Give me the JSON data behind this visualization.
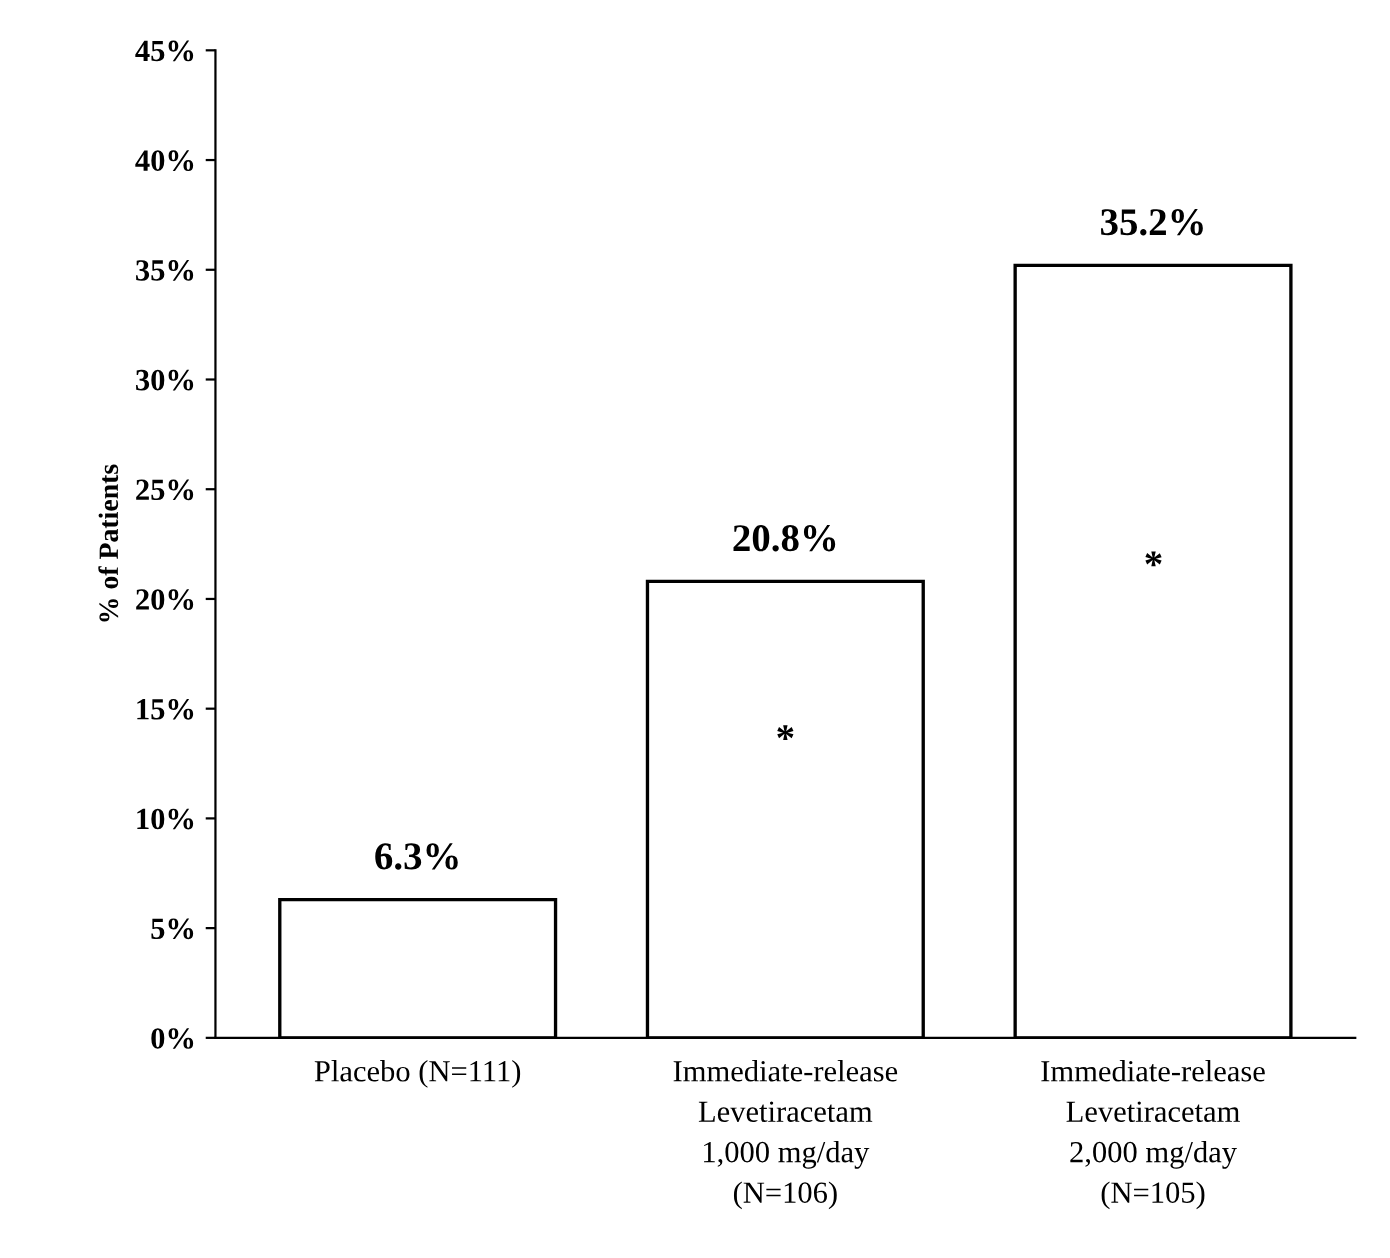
{
  "chart_data": {
    "type": "bar",
    "ylabel": "% of Patients",
    "categories": [
      "Placebo (N=111)",
      "Immediate-release\nLevetiracetam\n1,000 mg/day\n(N=106)",
      "Immediate-release\nLevetiracetam\n2,000 mg/day\n(N=105)"
    ],
    "values": [
      6.3,
      20.8,
      35.2
    ],
    "color": "#ffffff",
    "value_labels": [
      "6.3%",
      "20.8%",
      "35.2%"
    ],
    "ylim": [
      0,
      45
    ],
    "yticks": [
      {
        "value": 0,
        "label": "0%"
      },
      {
        "value": 5,
        "label": "5%"
      },
      {
        "value": 10,
        "label": "10%"
      },
      {
        "value": 15,
        "label": "15%"
      },
      {
        "value": 20,
        "label": "20%"
      },
      {
        "value": 25,
        "label": "25%"
      },
      {
        "value": 30,
        "label": "30%"
      },
      {
        "value": 35,
        "label": "35%"
      },
      {
        "value": 40,
        "label": "40%"
      },
      {
        "value": 45,
        "label": "45%"
      }
    ],
    "annotations": [
      "*",
      "*"
    ],
    "grid": false,
    "legend": false
  }
}
